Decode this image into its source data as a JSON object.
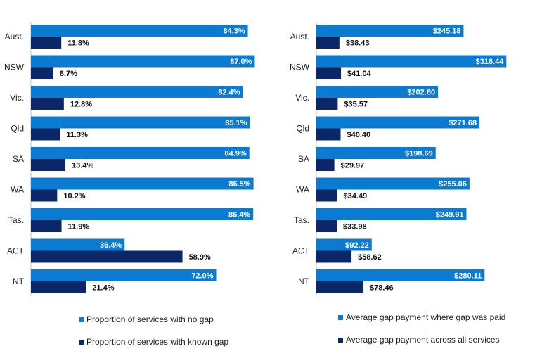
{
  "colors": {
    "series1": "#0a7bd0",
    "series2": "#0c2768"
  },
  "chart_data": [
    {
      "type": "bar",
      "orientation": "horizontal",
      "categories": [
        "Aust.",
        "NSW",
        "Vic.",
        "Qld",
        "SA",
        "WA",
        "Tas.",
        "ACT",
        "NT"
      ],
      "series": [
        {
          "name": "Proportion of services with no gap",
          "values": [
            84.3,
            87.0,
            82.4,
            85.1,
            84.9,
            86.5,
            86.4,
            36.4,
            72.0
          ],
          "labels": [
            "84.3%",
            "87.0%",
            "82.4%",
            "85.1%",
            "84.9%",
            "86.5%",
            "86.4%",
            "36.4%",
            "72.0%"
          ]
        },
        {
          "name": "Proportion of services with known gap",
          "values": [
            11.8,
            8.7,
            12.8,
            11.3,
            13.4,
            10.2,
            11.9,
            58.9,
            21.4
          ],
          "labels": [
            "11.8%",
            "8.7%",
            "12.8%",
            "11.3%",
            "13.4%",
            "10.2%",
            "11.9%",
            "58.9%",
            "21.4%"
          ]
        }
      ],
      "xlim": [
        0,
        100
      ],
      "grid": false,
      "legend_position": "bottom"
    },
    {
      "type": "bar",
      "orientation": "horizontal",
      "categories": [
        "Aust.",
        "NSW",
        "Vic.",
        "Qld",
        "SA",
        "WA",
        "Tas.",
        "ACT",
        "NT"
      ],
      "series": [
        {
          "name": "Average gap payment where gap was paid",
          "values": [
            245.18,
            316.44,
            202.6,
            271.68,
            198.69,
            255.06,
            249.91,
            92.22,
            280.11
          ],
          "labels": [
            "$245.18",
            "$316.44",
            "$202.60",
            "$271.68",
            "$198.69",
            "$255.06",
            "$249.91",
            "$92.22",
            "$280.11"
          ]
        },
        {
          "name": "Average gap payment across all services",
          "values": [
            38.43,
            41.04,
            35.57,
            40.4,
            29.97,
            34.49,
            33.98,
            58.62,
            78.46
          ],
          "labels": [
            "$38.43",
            "$41.04",
            "$35.57",
            "$40.40",
            "$29.97",
            "$34.49",
            "$33.98",
            "$58.62",
            "$78.46"
          ]
        }
      ],
      "xlim": [
        0,
        350
      ],
      "grid": false,
      "legend_position": "bottom"
    }
  ]
}
